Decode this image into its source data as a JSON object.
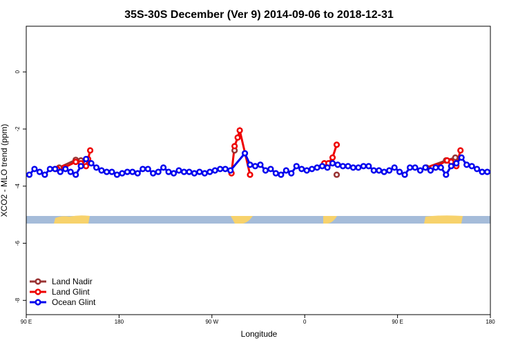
{
  "chart_data": {
    "type": "line",
    "title": "35S-30S December (Ver 9)   2014-09-06 to 2018-12-31",
    "x_label": "Longitude",
    "y_label": "XCO2 - MLO trend (ppm)",
    "xlim": [
      90,
      540
    ],
    "ylim": [
      -8.5,
      1.6
    ],
    "xticks": [
      {
        "value": 90,
        "label": "90 E"
      },
      180,
      {
        "value": 270,
        "label": "90 W"
      },
      {
        "value": 360,
        "label": "0"
      },
      {
        "value": 450,
        "label": "90 E"
      },
      {
        "value": 540,
        "label": "180"
      }
    ],
    "yticks": [
      0,
      -2,
      -4,
      -6,
      -8
    ],
    "legend": "bottom-left",
    "series": [
      {
        "name": "Land Nadir",
        "color": "#993333",
        "x": [
          118,
          122,
          138,
          143,
          200,
          292,
          340,
          391,
          440,
          478,
          497,
          506
        ],
        "values": [
          -3.4,
          -3.35,
          -3.08,
          -3.1,
          null,
          -2.75,
          null,
          -3.6,
          null,
          -3.35,
          -3.1,
          -3.0
        ]
      },
      {
        "name": "Land Glint",
        "color": "#ee0000",
        "x": [
          120,
          127,
          138,
          143,
          148,
          150,
          152,
          160,
          289,
          292,
          295,
          297,
          307,
          330,
          379,
          383,
          387,
          391,
          450,
          484,
          488,
          498,
          502,
          507,
          511
        ],
        "values": [
          -3.4,
          -3.35,
          -3.15,
          -3.2,
          -3.3,
          -3.05,
          -2.75,
          null,
          -3.55,
          -2.6,
          -2.3,
          -2.05,
          -3.6,
          null,
          -3.2,
          -3.2,
          -3.0,
          -2.55,
          null,
          -3.35,
          -3.3,
          -3.1,
          -3.15,
          -3.3,
          -2.75
        ]
      },
      {
        "name": "Ocean Glint",
        "color": "#0000ee",
        "x": [
          93,
          98,
          103,
          108,
          113,
          118,
          123,
          128,
          133,
          138,
          143,
          148,
          153,
          158,
          163,
          168,
          173,
          178,
          183,
          188,
          193,
          198,
          203,
          208,
          213,
          218,
          223,
          228,
          233,
          238,
          243,
          248,
          253,
          258,
          263,
          268,
          273,
          278,
          283,
          288,
          302,
          307,
          312,
          317,
          322,
          327,
          332,
          337,
          342,
          347,
          352,
          357,
          362,
          367,
          372,
          377,
          382,
          387,
          392,
          397,
          402,
          407,
          412,
          417,
          422,
          427,
          432,
          437,
          442,
          447,
          452,
          457,
          462,
          467,
          472,
          477,
          482,
          487,
          492,
          497,
          502,
          507,
          512,
          517,
          522,
          527,
          532,
          537
        ],
        "values": [
          -3.6,
          -3.4,
          -3.5,
          -3.6,
          -3.4,
          -3.4,
          -3.5,
          -3.4,
          -3.5,
          -3.6,
          -3.3,
          -3.05,
          -3.2,
          -3.35,
          -3.45,
          -3.5,
          -3.5,
          -3.6,
          -3.55,
          -3.5,
          -3.5,
          -3.55,
          -3.4,
          -3.4,
          -3.55,
          -3.5,
          -3.35,
          -3.5,
          -3.55,
          -3.45,
          -3.5,
          -3.5,
          -3.55,
          -3.5,
          -3.55,
          -3.5,
          -3.45,
          -3.4,
          -3.4,
          -3.45,
          -2.85,
          -3.25,
          -3.3,
          -3.25,
          -3.45,
          -3.4,
          -3.55,
          -3.6,
          -3.45,
          -3.55,
          -3.3,
          -3.4,
          -3.45,
          -3.4,
          -3.35,
          -3.3,
          -3.35,
          -3.2,
          -3.25,
          -3.3,
          -3.3,
          -3.35,
          -3.35,
          -3.3,
          -3.3,
          -3.45,
          -3.45,
          -3.5,
          -3.45,
          -3.35,
          -3.5,
          -3.6,
          -3.35,
          -3.35,
          -3.45,
          -3.35,
          -3.45,
          -3.35,
          -3.35,
          -3.6,
          -3.3,
          -3.2,
          -3.0,
          -3.25,
          -3.3,
          -3.4,
          -3.5,
          -3.5
        ]
      }
    ]
  }
}
